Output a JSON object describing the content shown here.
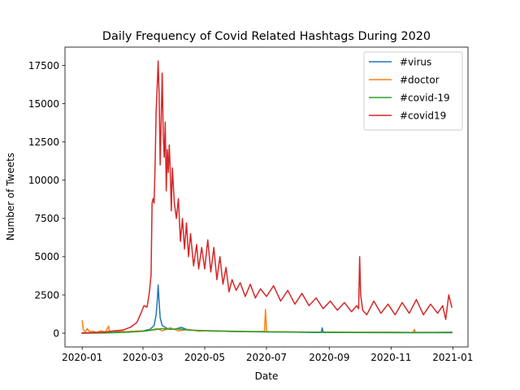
{
  "chart_data": {
    "type": "line",
    "title": "Daily Frequency of Covid Related Hashtags During 2020",
    "xlabel": "Date",
    "ylabel": "Number of Tweets",
    "xlim": [
      "2019-12-15",
      "2021-01-16"
    ],
    "ylim": [
      -900,
      18700
    ],
    "x_ticks": [
      "2020-01",
      "2020-03",
      "2020-05",
      "2020-07",
      "2020-09",
      "2020-11",
      "2021-01"
    ],
    "y_ticks": [
      0,
      2500,
      5000,
      7500,
      10000,
      12500,
      15000,
      17500
    ],
    "y_tick_labels": [
      "0",
      "2500",
      "5000",
      "7500",
      "10000",
      "12500",
      "15000",
      "17500"
    ],
    "grid": false,
    "legend_position": "top-right",
    "series": [
      {
        "name": "#virus",
        "color": "#1f77b4",
        "points": [
          [
            "2020-01-01",
            20
          ],
          [
            "2020-01-15",
            30
          ],
          [
            "2020-02-01",
            60
          ],
          [
            "2020-02-15",
            100
          ],
          [
            "2020-03-01",
            150
          ],
          [
            "2020-03-08",
            250
          ],
          [
            "2020-03-12",
            500
          ],
          [
            "2020-03-14",
            1200
          ],
          [
            "2020-03-15",
            2000
          ],
          [
            "2020-03-16",
            3150
          ],
          [
            "2020-03-17",
            2000
          ],
          [
            "2020-03-18",
            1000
          ],
          [
            "2020-03-20",
            500
          ],
          [
            "2020-03-25",
            300
          ],
          [
            "2020-04-01",
            250
          ],
          [
            "2020-04-08",
            380
          ],
          [
            "2020-04-15",
            200
          ],
          [
            "2020-05-01",
            150
          ],
          [
            "2020-06-01",
            100
          ],
          [
            "2020-07-01",
            80
          ],
          [
            "2020-08-01",
            60
          ],
          [
            "2020-08-24",
            40
          ],
          [
            "2020-08-25",
            350
          ],
          [
            "2020-08-26",
            40
          ],
          [
            "2020-09-15",
            40
          ],
          [
            "2020-10-15",
            35
          ],
          [
            "2020-11-15",
            30
          ],
          [
            "2020-12-31",
            30
          ]
        ]
      },
      {
        "name": "#doctor",
        "color": "#ff7f0e",
        "points": [
          [
            "2020-01-01",
            800
          ],
          [
            "2020-01-02",
            250
          ],
          [
            "2020-01-04",
            80
          ],
          [
            "2020-01-06",
            300
          ],
          [
            "2020-01-08",
            100
          ],
          [
            "2020-01-12",
            120
          ],
          [
            "2020-01-15",
            60
          ],
          [
            "2020-01-20",
            150
          ],
          [
            "2020-01-24",
            80
          ],
          [
            "2020-01-27",
            450
          ],
          [
            "2020-01-28",
            100
          ],
          [
            "2020-02-05",
            150
          ],
          [
            "2020-02-15",
            80
          ],
          [
            "2020-02-25",
            150
          ],
          [
            "2020-03-05",
            150
          ],
          [
            "2020-03-15",
            300
          ],
          [
            "2020-03-20",
            150
          ],
          [
            "2020-03-28",
            350
          ],
          [
            "2020-04-05",
            150
          ],
          [
            "2020-04-15",
            250
          ],
          [
            "2020-04-25",
            130
          ],
          [
            "2020-05-01",
            150
          ],
          [
            "2020-05-15",
            130
          ],
          [
            "2020-06-01",
            100
          ],
          [
            "2020-06-20",
            100
          ],
          [
            "2020-06-29",
            120
          ],
          [
            "2020-06-30",
            1550
          ],
          [
            "2020-07-01",
            200
          ],
          [
            "2020-07-02",
            100
          ],
          [
            "2020-08-01",
            80
          ],
          [
            "2020-09-01",
            60
          ],
          [
            "2020-10-01",
            60
          ],
          [
            "2020-11-01",
            60
          ],
          [
            "2020-11-23",
            50
          ],
          [
            "2020-11-24",
            250
          ],
          [
            "2020-11-25",
            60
          ],
          [
            "2020-12-15",
            50
          ],
          [
            "2020-12-31",
            60
          ]
        ]
      },
      {
        "name": "#covid-19",
        "color": "#2ca02c",
        "points": [
          [
            "2020-01-01",
            0
          ],
          [
            "2020-01-20",
            10
          ],
          [
            "2020-02-01",
            30
          ],
          [
            "2020-02-15",
            60
          ],
          [
            "2020-03-01",
            120
          ],
          [
            "2020-03-10",
            200
          ],
          [
            "2020-03-20",
            300
          ],
          [
            "2020-03-28",
            250
          ],
          [
            "2020-04-05",
            280
          ],
          [
            "2020-04-15",
            200
          ],
          [
            "2020-05-01",
            170
          ],
          [
            "2020-05-15",
            150
          ],
          [
            "2020-06-01",
            120
          ],
          [
            "2020-07-01",
            90
          ],
          [
            "2020-08-01",
            70
          ],
          [
            "2020-09-01",
            60
          ],
          [
            "2020-10-01",
            50
          ],
          [
            "2020-11-01",
            50
          ],
          [
            "2020-12-01",
            40
          ],
          [
            "2020-12-31",
            60
          ]
        ]
      },
      {
        "name": "#covid19",
        "color": "#d62728",
        "points": [
          [
            "2020-01-01",
            0
          ],
          [
            "2020-01-15",
            50
          ],
          [
            "2020-01-25",
            80
          ],
          [
            "2020-02-01",
            150
          ],
          [
            "2020-02-10",
            200
          ],
          [
            "2020-02-18",
            400
          ],
          [
            "2020-02-24",
            700
          ],
          [
            "2020-02-28",
            1300
          ],
          [
            "2020-03-02",
            1800
          ],
          [
            "2020-03-05",
            1700
          ],
          [
            "2020-03-07",
            2500
          ],
          [
            "2020-03-09",
            3800
          ],
          [
            "2020-03-10",
            8500
          ],
          [
            "2020-03-11",
            8800
          ],
          [
            "2020-03-12",
            8500
          ],
          [
            "2020-03-13",
            11000
          ],
          [
            "2020-03-14",
            14500
          ],
          [
            "2020-03-15",
            16000
          ],
          [
            "2020-03-16",
            17800
          ],
          [
            "2020-03-17",
            15500
          ],
          [
            "2020-03-18",
            11000
          ],
          [
            "2020-03-19",
            14000
          ],
          [
            "2020-03-20",
            17000
          ],
          [
            "2020-03-21",
            13000
          ],
          [
            "2020-03-22",
            11500
          ],
          [
            "2020-03-23",
            13800
          ],
          [
            "2020-03-24",
            9300
          ],
          [
            "2020-03-25",
            12000
          ],
          [
            "2020-03-26",
            10500
          ],
          [
            "2020-03-27",
            12300
          ],
          [
            "2020-03-28",
            10500
          ],
          [
            "2020-03-29",
            8000
          ],
          [
            "2020-03-30",
            10800
          ],
          [
            "2020-04-01",
            8500
          ],
          [
            "2020-04-03",
            7500
          ],
          [
            "2020-04-05",
            8800
          ],
          [
            "2020-04-07",
            6000
          ],
          [
            "2020-04-09",
            7500
          ],
          [
            "2020-04-11",
            5500
          ],
          [
            "2020-04-13",
            7200
          ],
          [
            "2020-04-15",
            5000
          ],
          [
            "2020-04-17",
            6500
          ],
          [
            "2020-04-20",
            4400
          ],
          [
            "2020-04-23",
            5800
          ],
          [
            "2020-04-25",
            4200
          ],
          [
            "2020-04-28",
            5600
          ],
          [
            "2020-05-01",
            4200
          ],
          [
            "2020-05-04",
            6100
          ],
          [
            "2020-05-07",
            4000
          ],
          [
            "2020-05-10",
            5600
          ],
          [
            "2020-05-13",
            3500
          ],
          [
            "2020-05-16",
            5000
          ],
          [
            "2020-05-19",
            3200
          ],
          [
            "2020-05-22",
            4300
          ],
          [
            "2020-05-25",
            2700
          ],
          [
            "2020-05-28",
            3500
          ],
          [
            "2020-06-01",
            2800
          ],
          [
            "2020-06-05",
            3300
          ],
          [
            "2020-06-10",
            2400
          ],
          [
            "2020-06-15",
            3200
          ],
          [
            "2020-06-20",
            2300
          ],
          [
            "2020-06-25",
            2900
          ],
          [
            "2020-07-01",
            2400
          ],
          [
            "2020-07-08",
            3100
          ],
          [
            "2020-07-15",
            2100
          ],
          [
            "2020-07-22",
            2800
          ],
          [
            "2020-07-29",
            1900
          ],
          [
            "2020-08-05",
            2600
          ],
          [
            "2020-08-12",
            1800
          ],
          [
            "2020-08-19",
            2300
          ],
          [
            "2020-08-26",
            1600
          ],
          [
            "2020-09-02",
            2100
          ],
          [
            "2020-09-09",
            1500
          ],
          [
            "2020-09-16",
            2000
          ],
          [
            "2020-09-23",
            1400
          ],
          [
            "2020-09-28",
            1800
          ],
          [
            "2020-09-30",
            1600
          ],
          [
            "2020-10-01",
            5000
          ],
          [
            "2020-10-02",
            2500
          ],
          [
            "2020-10-04",
            1500
          ],
          [
            "2020-10-08",
            1200
          ],
          [
            "2020-10-15",
            2100
          ],
          [
            "2020-10-22",
            1300
          ],
          [
            "2020-10-29",
            1900
          ],
          [
            "2020-11-05",
            1200
          ],
          [
            "2020-11-12",
            2000
          ],
          [
            "2020-11-19",
            1300
          ],
          [
            "2020-11-26",
            2200
          ],
          [
            "2020-12-03",
            1200
          ],
          [
            "2020-12-10",
            1900
          ],
          [
            "2020-12-17",
            1300
          ],
          [
            "2020-12-22",
            1800
          ],
          [
            "2020-12-25",
            900
          ],
          [
            "2020-12-28",
            2500
          ],
          [
            "2020-12-31",
            1700
          ]
        ]
      }
    ]
  }
}
